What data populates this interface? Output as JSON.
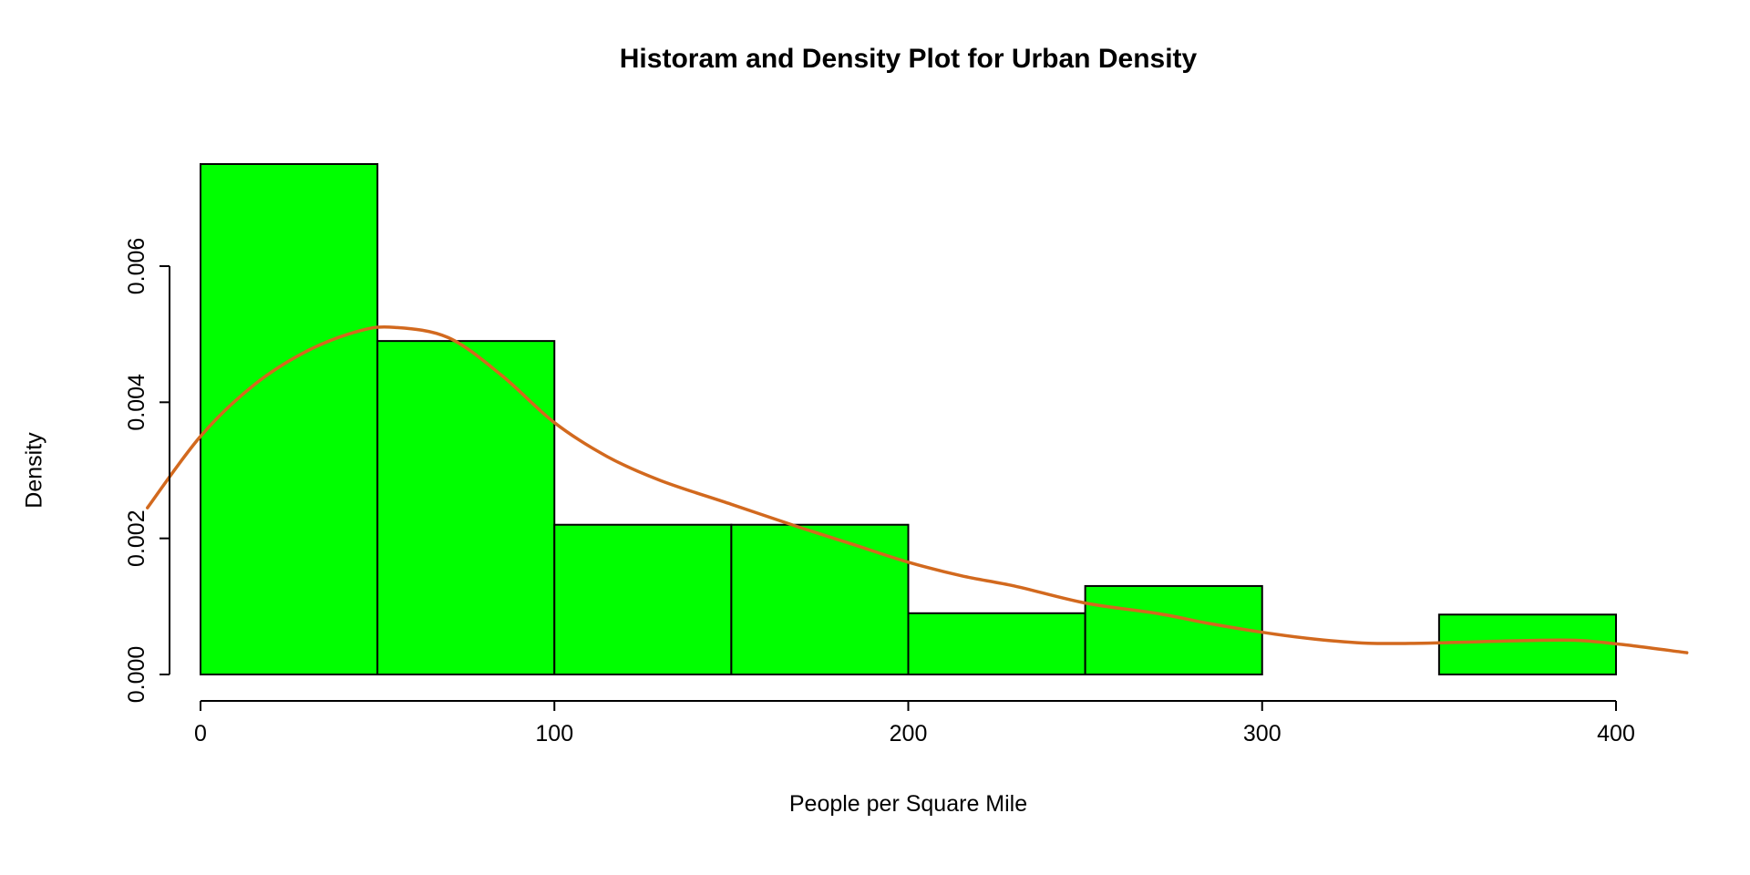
{
  "chart_data": {
    "type": "histogram+density",
    "title": "Historam and Density Plot for Urban Density",
    "xlabel": "People per Square Mile",
    "ylabel": "Density",
    "xlim": [
      -20,
      428
    ],
    "ylim": [
      0,
      0.0078
    ],
    "x_ticks": [
      0,
      100,
      200,
      300,
      400
    ],
    "x_tick_labels": [
      "0",
      "100",
      "200",
      "300",
      "400"
    ],
    "y_ticks": [
      0,
      0.002,
      0.004,
      0.006
    ],
    "y_tick_labels": [
      "0.000",
      "0.002",
      "0.004",
      "0.006"
    ],
    "grid": false,
    "legend": "none",
    "bar_fill": "#00FF00",
    "bar_stroke": "#000000",
    "bins": [
      {
        "x0": 0,
        "x1": 50,
        "density": 0.0075
      },
      {
        "x0": 50,
        "x1": 100,
        "density": 0.0049
      },
      {
        "x0": 100,
        "x1": 150,
        "density": 0.0022
      },
      {
        "x0": 150,
        "x1": 200,
        "density": 0.0022
      },
      {
        "x0": 200,
        "x1": 250,
        "density": 0.0009
      },
      {
        "x0": 250,
        "x1": 300,
        "density": 0.0013
      },
      {
        "x0": 300,
        "x1": 350,
        "density": 0.0
      },
      {
        "x0": 350,
        "x1": 400,
        "density": 0.00088
      }
    ],
    "density_curve": {
      "color": "#D2691E",
      "points": [
        [
          -15,
          0.00245
        ],
        [
          0,
          0.0035
        ],
        [
          15,
          0.00425
        ],
        [
          30,
          0.00475
        ],
        [
          45,
          0.00505
        ],
        [
          55,
          0.0051
        ],
        [
          70,
          0.00495
        ],
        [
          85,
          0.0044
        ],
        [
          100,
          0.0037
        ],
        [
          115,
          0.0032
        ],
        [
          130,
          0.00285
        ],
        [
          150,
          0.0025
        ],
        [
          170,
          0.00215
        ],
        [
          185,
          0.0019
        ],
        [
          200,
          0.00165
        ],
        [
          215,
          0.00145
        ],
        [
          230,
          0.0013
        ],
        [
          250,
          0.00105
        ],
        [
          270,
          0.0009
        ],
        [
          285,
          0.00075
        ],
        [
          300,
          0.00062
        ],
        [
          315,
          0.00052
        ],
        [
          330,
          0.00046
        ],
        [
          345,
          0.00046
        ],
        [
          360,
          0.00048
        ],
        [
          375,
          0.0005
        ],
        [
          390,
          0.0005
        ],
        [
          405,
          0.00042
        ],
        [
          420,
          0.00032
        ]
      ]
    }
  }
}
